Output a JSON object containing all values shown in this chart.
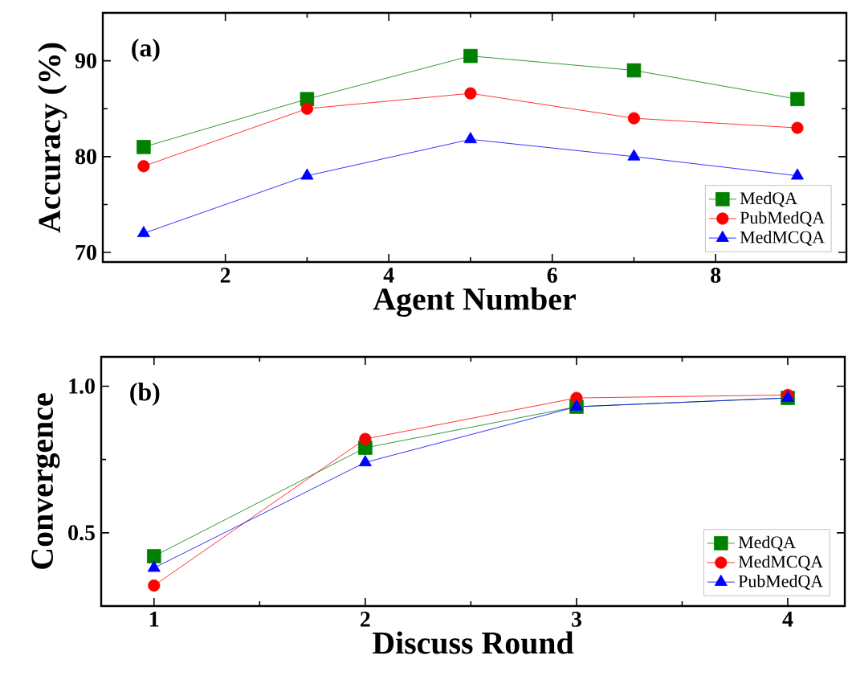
{
  "chart_data": [
    {
      "type": "line",
      "xlabel": "Agent Number",
      "ylabel": "Accuracy (%)",
      "annotations": [
        "(a)"
      ],
      "x": [
        1,
        3,
        5,
        7,
        9
      ],
      "xlim": [
        0.5,
        9.6
      ],
      "ylim": [
        69,
        95
      ],
      "xticks": [
        2,
        4,
        6,
        8
      ],
      "yticks": [
        70,
        80,
        90
      ],
      "legend": "bottom right",
      "tick_labels": "xy",
      "series": [
        {
          "name": "MedQA",
          "color": "#008000",
          "marker": "square",
          "values": [
            81,
            86,
            90.5,
            89,
            86
          ]
        },
        {
          "name": "PubMedQA",
          "color": "#ff0000",
          "marker": "circle",
          "values": [
            79,
            85,
            86.6,
            84,
            83
          ]
        },
        {
          "name": "MedMCQA",
          "color": "#0000ff",
          "marker": "triangle",
          "values": [
            72,
            78,
            81.8,
            80,
            78
          ]
        }
      ]
    },
    {
      "type": "line",
      "xlabel": "Discuss Round",
      "ylabel": "Convergence",
      "annotations": [
        "(b)"
      ],
      "x": [
        1,
        2,
        3,
        4
      ],
      "xlim": [
        0.75,
        4.27
      ],
      "ylim": [
        0.25,
        1.1
      ],
      "xticks": [
        1,
        2,
        3,
        4
      ],
      "yticks": [
        {
          "value": 0.5,
          "label": "0.5"
        },
        {
          "value": 1.0,
          "label": "1.0"
        }
      ],
      "legend": "bottom right",
      "series": [
        {
          "name": "MedQA",
          "color": "#008000",
          "marker": "square",
          "values": [
            0.42,
            0.79,
            0.93,
            0.96
          ]
        },
        {
          "name": "MedMCQA",
          "color": "#ff0000",
          "marker": "circle",
          "values": [
            0.32,
            0.82,
            0.96,
            0.97
          ]
        },
        {
          "name": "PubMedQA",
          "color": "#0000ff",
          "marker": "triangle",
          "values": [
            0.38,
            0.74,
            0.93,
            0.96
          ]
        }
      ]
    }
  ]
}
